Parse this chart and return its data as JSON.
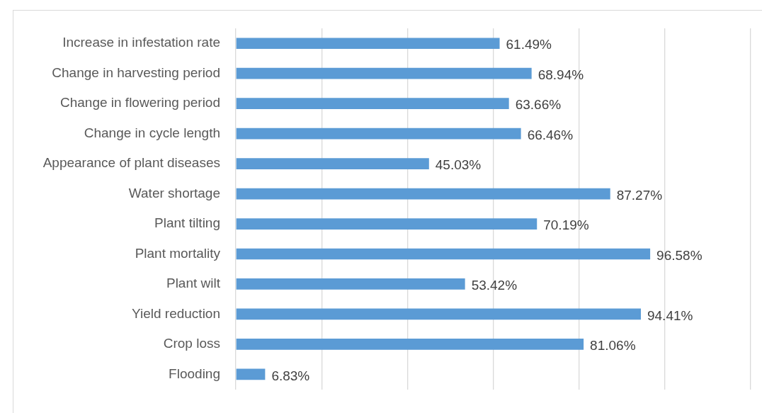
{
  "chart_data": {
    "type": "bar",
    "orientation": "horizontal",
    "categories": [
      "Increase in infestation rate",
      "Change in harvesting period",
      "Change in flowering period",
      "Change in cycle length",
      "Appearance of plant diseases",
      "Water shortage",
      "Plant tilting",
      "Plant mortality",
      "Plant wilt",
      "Yield reduction",
      "Crop loss",
      "Flooding"
    ],
    "values": [
      61.49,
      68.94,
      63.66,
      66.46,
      45.03,
      87.27,
      70.19,
      96.58,
      53.42,
      94.41,
      81.06,
      6.83
    ],
    "value_labels": [
      "61.49%",
      "68.94%",
      "63.66%",
      "66.46%",
      "45.03%",
      "87.27%",
      "70.19%",
      "96.58%",
      "53.42%",
      "94.41%",
      "81.06%",
      "6.83%"
    ],
    "color": "#5b9bd5",
    "xlim": [
      0,
      120
    ],
    "xticks": [
      {
        "value": 0,
        "label": null
      },
      {
        "value": 20,
        "label": null
      },
      {
        "value": 40,
        "label": null
      },
      {
        "value": 60,
        "label": null
      },
      {
        "value": 80,
        "label": null
      },
      {
        "value": 100,
        "label": null
      },
      {
        "value": 120,
        "label": null
      }
    ],
    "tick_labels": "y",
    "grid": "x",
    "legend": false
  }
}
